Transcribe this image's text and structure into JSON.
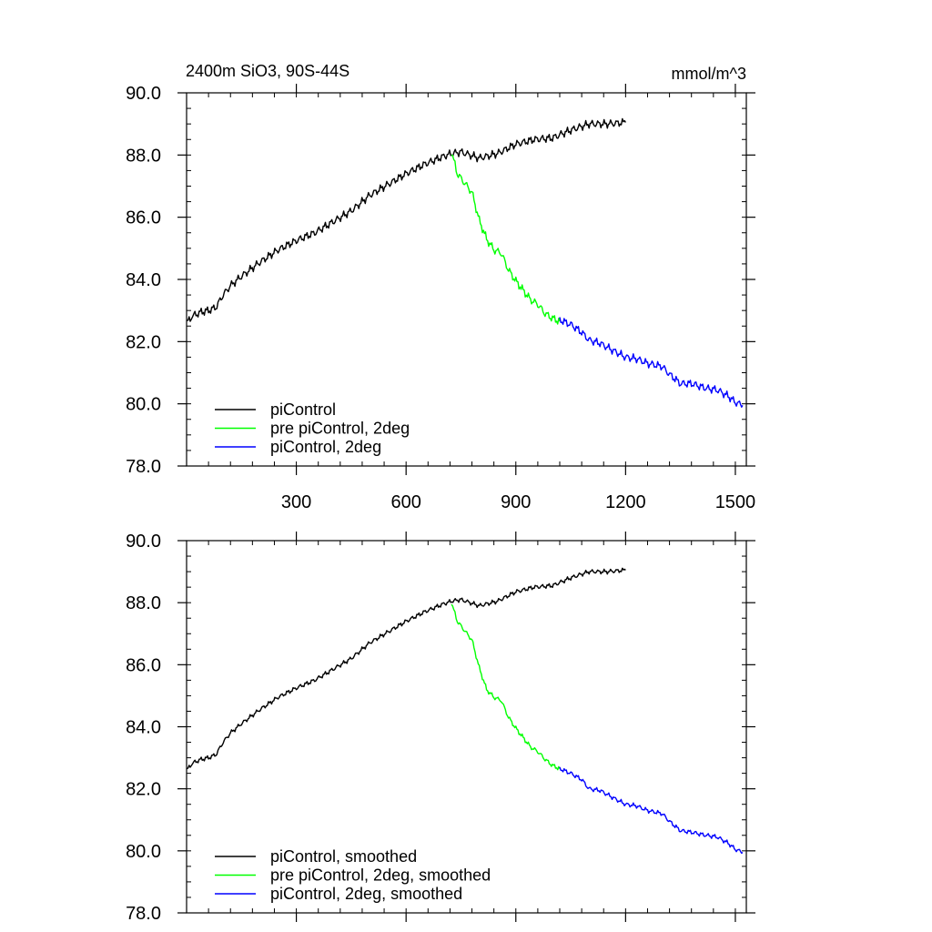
{
  "chart_data": [
    {
      "type": "line",
      "title": "2400m SiO3, 90S-44S",
      "unit_label": "mmol/m^3",
      "xlim": [
        0,
        1530
      ],
      "ylim": [
        78,
        90
      ],
      "x_ticks": [
        300,
        600,
        900,
        1200,
        1500
      ],
      "x_tick_labels": [
        "300",
        "600",
        "900",
        "1200",
        "1500"
      ],
      "y_ticks": [
        78,
        80,
        82,
        84,
        86,
        88,
        90
      ],
      "y_tick_labels": [
        "78.0",
        "80.0",
        "82.0",
        "84.0",
        "86.0",
        "88.0",
        "90.0"
      ],
      "legend_position": "bottom-left",
      "smoothed": false,
      "series": [
        {
          "name": "piControl",
          "color": "#000000",
          "x": [
            1,
            10,
            20,
            40,
            60,
            80,
            100,
            120,
            150,
            200,
            250,
            300,
            350,
            400,
            450,
            500,
            550,
            600,
            650,
            700,
            725,
            750,
            800,
            850,
            900,
            950,
            1000,
            1050,
            1100,
            1150,
            1200
          ],
          "y": [
            82.6,
            82.75,
            82.85,
            82.95,
            83.0,
            83.1,
            83.5,
            83.8,
            84.1,
            84.55,
            84.95,
            85.25,
            85.5,
            85.85,
            86.2,
            86.7,
            87.05,
            87.4,
            87.7,
            87.95,
            88.05,
            88.1,
            87.9,
            88.05,
            88.35,
            88.5,
            88.55,
            88.8,
            89.0,
            89.0,
            89.05
          ]
        },
        {
          "name": "pre piControl, 2deg",
          "color": "#00ff00",
          "x": [
            724,
            740,
            760,
            780,
            800,
            820,
            840,
            860,
            880,
            900,
            920,
            940,
            960,
            980,
            1000,
            1020
          ],
          "y": [
            88.1,
            87.4,
            87.1,
            86.8,
            85.9,
            85.3,
            84.95,
            84.85,
            84.3,
            83.95,
            83.65,
            83.35,
            83.2,
            82.9,
            82.75,
            82.65
          ]
        },
        {
          "name": "piControl, 2deg",
          "color": "#0000ff",
          "x": [
            1020,
            1050,
            1080,
            1100,
            1130,
            1160,
            1200,
            1230,
            1260,
            1300,
            1320,
            1350,
            1380,
            1420,
            1450,
            1480,
            1500,
            1520
          ],
          "y": [
            82.7,
            82.55,
            82.3,
            82.05,
            81.95,
            81.75,
            81.5,
            81.45,
            81.3,
            81.2,
            80.95,
            80.65,
            80.65,
            80.5,
            80.45,
            80.25,
            80.05,
            79.95
          ]
        }
      ]
    },
    {
      "type": "line",
      "xlim": [
        0,
        1530
      ],
      "ylim": [
        78,
        90
      ],
      "x_ticks": [
        300,
        600,
        900,
        1200,
        1500
      ],
      "y_ticks": [
        78,
        80,
        82,
        84,
        86,
        88,
        90
      ],
      "y_tick_labels": [
        "78.0",
        "80.0",
        "82.0",
        "84.0",
        "86.0",
        "88.0",
        "90.0"
      ],
      "legend_position": "bottom-left",
      "smoothed": true,
      "series": [
        {
          "name": "piControl, smoothed",
          "color": "#000000",
          "x": [
            1,
            10,
            20,
            40,
            60,
            80,
            100,
            120,
            150,
            200,
            250,
            300,
            350,
            400,
            450,
            500,
            550,
            600,
            650,
            700,
            725,
            750,
            800,
            850,
            900,
            950,
            1000,
            1050,
            1100,
            1150,
            1200
          ],
          "y": [
            82.6,
            82.75,
            82.85,
            82.95,
            83.0,
            83.1,
            83.5,
            83.8,
            84.1,
            84.55,
            84.95,
            85.25,
            85.5,
            85.85,
            86.2,
            86.7,
            87.05,
            87.4,
            87.7,
            87.95,
            88.05,
            88.1,
            87.9,
            88.05,
            88.35,
            88.5,
            88.55,
            88.8,
            89.0,
            89.0,
            89.05
          ]
        },
        {
          "name": "pre piControl, 2deg, smoothed",
          "color": "#00ff00",
          "x": [
            724,
            740,
            760,
            780,
            800,
            820,
            840,
            860,
            880,
            900,
            920,
            940,
            960,
            980,
            1000,
            1020
          ],
          "y": [
            88.0,
            87.4,
            87.1,
            86.8,
            85.9,
            85.2,
            84.95,
            84.85,
            84.3,
            83.95,
            83.65,
            83.35,
            83.2,
            82.95,
            82.75,
            82.65
          ]
        },
        {
          "name": "piControl, 2deg, smoothed",
          "color": "#0000ff",
          "x": [
            1020,
            1050,
            1080,
            1100,
            1130,
            1160,
            1200,
            1230,
            1260,
            1300,
            1320,
            1350,
            1380,
            1420,
            1450,
            1480,
            1500,
            1520
          ],
          "y": [
            82.65,
            82.5,
            82.3,
            82.0,
            81.95,
            81.75,
            81.5,
            81.45,
            81.3,
            81.2,
            80.95,
            80.65,
            80.6,
            80.5,
            80.45,
            80.25,
            80.05,
            79.95
          ]
        }
      ]
    }
  ]
}
